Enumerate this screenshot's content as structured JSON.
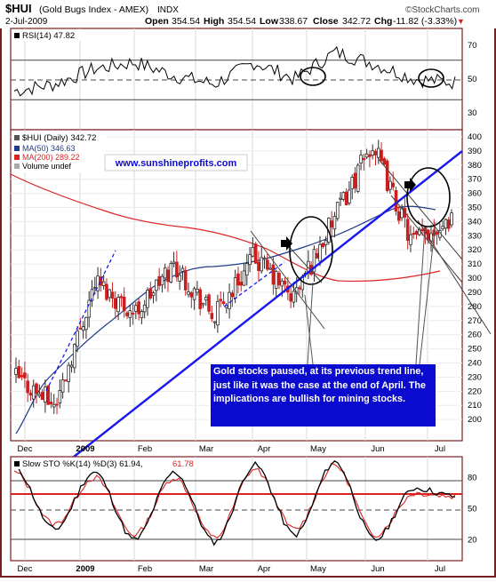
{
  "header": {
    "ticker": "$HUI",
    "name": "(Gold Bugs Index - AMEX)",
    "exchange": "INDX",
    "date": "2-Jul-2009",
    "open_label": "Open",
    "open": "354.54",
    "high_label": "High",
    "high": "354.54",
    "low_label": "Low",
    "low": "338.67",
    "close_label": "Close",
    "close": "342.72",
    "chg_label": "Chg",
    "chg": "-11.82 (-3.33%)",
    "arrow": "▼",
    "brand": "©StockCharts.com"
  },
  "colors": {
    "frame": "#7a1f1f",
    "price_up": "#2a2a2a",
    "price_down": "#cc1f1f",
    "ma50": "#1e3a8a",
    "ma200": "#dd2222",
    "trend": "#1a1aee",
    "note_bg": "#0b0bd0",
    "rsi": "#000000",
    "sto_k": "#000000",
    "sto_d": "#dd2222"
  },
  "watermark": "www.sunshineprofits.com",
  "note": "Gold stocks paused, at its previous trend line, just like it was the case at the end of April. The implications are bullish for mining stocks.",
  "month_labels": [
    "Dec",
    "2009",
    "Feb",
    "Mar",
    "Apr",
    "May",
    "Jun",
    "Jul"
  ],
  "chart_data": [
    {
      "type": "line",
      "panel": "RSI",
      "legend": "RSI(14) 47.82",
      "ylim": [
        20,
        80
      ],
      "ticks": [
        30,
        50,
        70
      ],
      "x": [
        "2008-12-01",
        "2008-12-22",
        "2009-01-12",
        "2009-02-02",
        "2009-02-23",
        "2009-03-16",
        "2009-04-06",
        "2009-04-27",
        "2009-05-18",
        "2009-06-08",
        "2009-06-29",
        "2009-07-02"
      ],
      "values": [
        43,
        47,
        56,
        60,
        52,
        47,
        60,
        50,
        66,
        59,
        50,
        48
      ]
    },
    {
      "type": "candlestick",
      "panel": "price",
      "legend": [
        "$HUI (Daily) 342.72",
        "MA(50) 346.63",
        "MA(200) 289.22",
        "Volume undef"
      ],
      "ylim": [
        185,
        405
      ],
      "ticks": [
        200,
        210,
        220,
        230,
        240,
        250,
        260,
        270,
        280,
        290,
        300,
        310,
        320,
        330,
        340,
        350,
        360,
        370,
        380,
        390,
        400
      ],
      "x": [
        "2008-12-01",
        "2008-12-15",
        "2009-01-05",
        "2009-01-26",
        "2009-02-16",
        "2009-03-09",
        "2009-03-30",
        "2009-04-20",
        "2009-05-11",
        "2009-06-01",
        "2009-06-22",
        "2009-07-02"
      ],
      "close": [
        230,
        210,
        298,
        275,
        310,
        272,
        315,
        286,
        340,
        395,
        325,
        343
      ],
      "ma50": [
        220,
        235,
        255,
        283,
        300,
        297,
        292,
        305,
        318,
        348,
        346,
        347
      ],
      "ma200": [
        350,
        345,
        332,
        320,
        313,
        305,
        300,
        298,
        290,
        293,
        292,
        289
      ]
    },
    {
      "type": "line",
      "panel": "Slow STO",
      "legend": [
        "Slow STO %K(14) %D(3) 61.94,",
        "61.78"
      ],
      "ylim": [
        0,
        100
      ],
      "ticks": [
        20,
        50,
        80
      ],
      "x": [
        "2008-12-01",
        "2008-12-22",
        "2009-01-12",
        "2009-02-02",
        "2009-02-23",
        "2009-03-16",
        "2009-04-06",
        "2009-04-27",
        "2009-05-18",
        "2009-06-08",
        "2009-06-29",
        "2009-07-02"
      ],
      "series": [
        {
          "name": "%K",
          "values": [
            90,
            30,
            85,
            20,
            85,
            18,
            92,
            25,
            95,
            20,
            70,
            62
          ]
        },
        {
          "name": "%D",
          "values": [
            85,
            35,
            80,
            25,
            80,
            22,
            88,
            30,
            92,
            25,
            65,
            62
          ]
        }
      ]
    }
  ]
}
